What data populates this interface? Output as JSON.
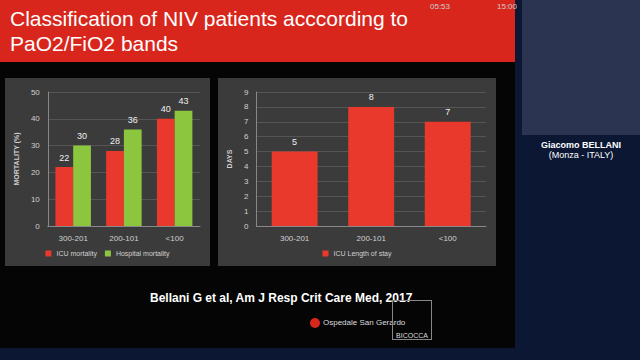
{
  "slide": {
    "title": "Classification of NIV patients acccording to PaO2/FiO2 bands",
    "citation": "Bellani G et al, Am J Resp Crit Care Med, 2017",
    "speaker": {
      "name": "Giacomo BELLANI",
      "place": "(Monza - ITALY)"
    },
    "logos": [
      "Ospedale San Gerardo",
      "BICOCCA"
    ],
    "clock": [
      "05:53",
      "15:00"
    ]
  },
  "chart_data": [
    {
      "type": "bar",
      "y_label": "MORTALITY (%)",
      "categories": [
        "300-201",
        "200-101",
        "<100"
      ],
      "series": [
        {
          "name": "ICU mortality",
          "color": "#e8392c",
          "values": [
            22,
            28,
            40
          ]
        },
        {
          "name": "Hospital mortality",
          "color": "#8cc63e",
          "values": [
            30,
            36,
            43
          ]
        }
      ],
      "ylim": [
        0,
        50
      ],
      "yticks": [
        0,
        10,
        20,
        30,
        40,
        50
      ],
      "grid": true,
      "legend": "bottom",
      "data_labels": true
    },
    {
      "type": "bar",
      "y_label": "DAYS",
      "categories": [
        "300-201",
        "200-101",
        "<100"
      ],
      "series": [
        {
          "name": "ICU Length of stay",
          "color": "#e8392c",
          "values": [
            5,
            8,
            7
          ]
        }
      ],
      "ylim": [
        0,
        9
      ],
      "yticks": [
        0,
        1,
        2,
        3,
        4,
        5,
        6,
        7,
        8,
        9
      ],
      "grid": true,
      "legend": "bottom",
      "data_labels": true
    }
  ]
}
